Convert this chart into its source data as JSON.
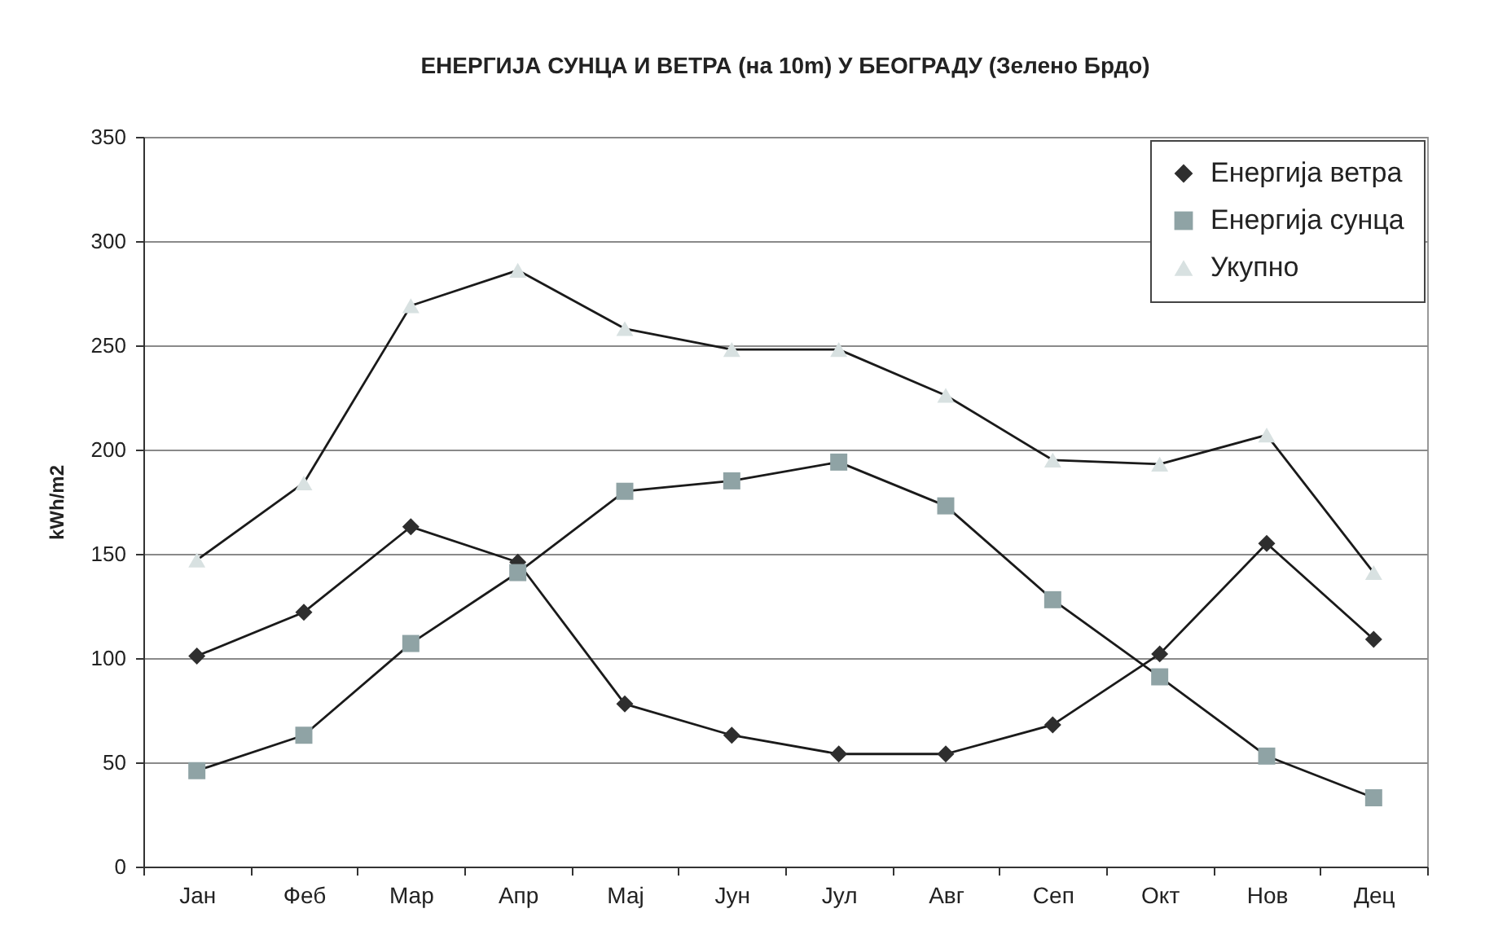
{
  "chart_data": {
    "type": "line",
    "title": "ЕНЕРГИЈА СУНЦА И ВЕТРА (на 10m) У БЕОГРАДУ (Зелено Брдо)",
    "ylabel": "kWh/m2",
    "categories": [
      "Јан",
      "Феб",
      "Мар",
      "Апр",
      "Мај",
      "Јун",
      "Јул",
      "Авг",
      "Сеп",
      "Окт",
      "Нов",
      "Дец"
    ],
    "series": [
      {
        "name": "Енергија ветра",
        "color": "#2e2e2e",
        "marker": "diamond",
        "values": [
          101,
          122,
          163,
          146,
          78,
          63,
          54,
          54,
          68,
          102,
          155,
          109
        ]
      },
      {
        "name": "Енергија сунца",
        "color": "#8fa3a5",
        "marker": "square",
        "values": [
          46,
          63,
          107,
          141,
          180,
          185,
          194,
          173,
          128,
          91,
          53,
          33
        ]
      },
      {
        "name": "Укупно",
        "color": "#d8e1e1",
        "marker": "triangle",
        "values": [
          147,
          184,
          269,
          286,
          258,
          248,
          248,
          226,
          195,
          193,
          207,
          141
        ]
      }
    ],
    "ylim": [
      0,
      350
    ],
    "yticks": [
      0,
      50,
      100,
      150,
      200,
      250,
      300,
      350
    ],
    "grid": "y",
    "legend": "top right",
    "line_style": "solid"
  }
}
